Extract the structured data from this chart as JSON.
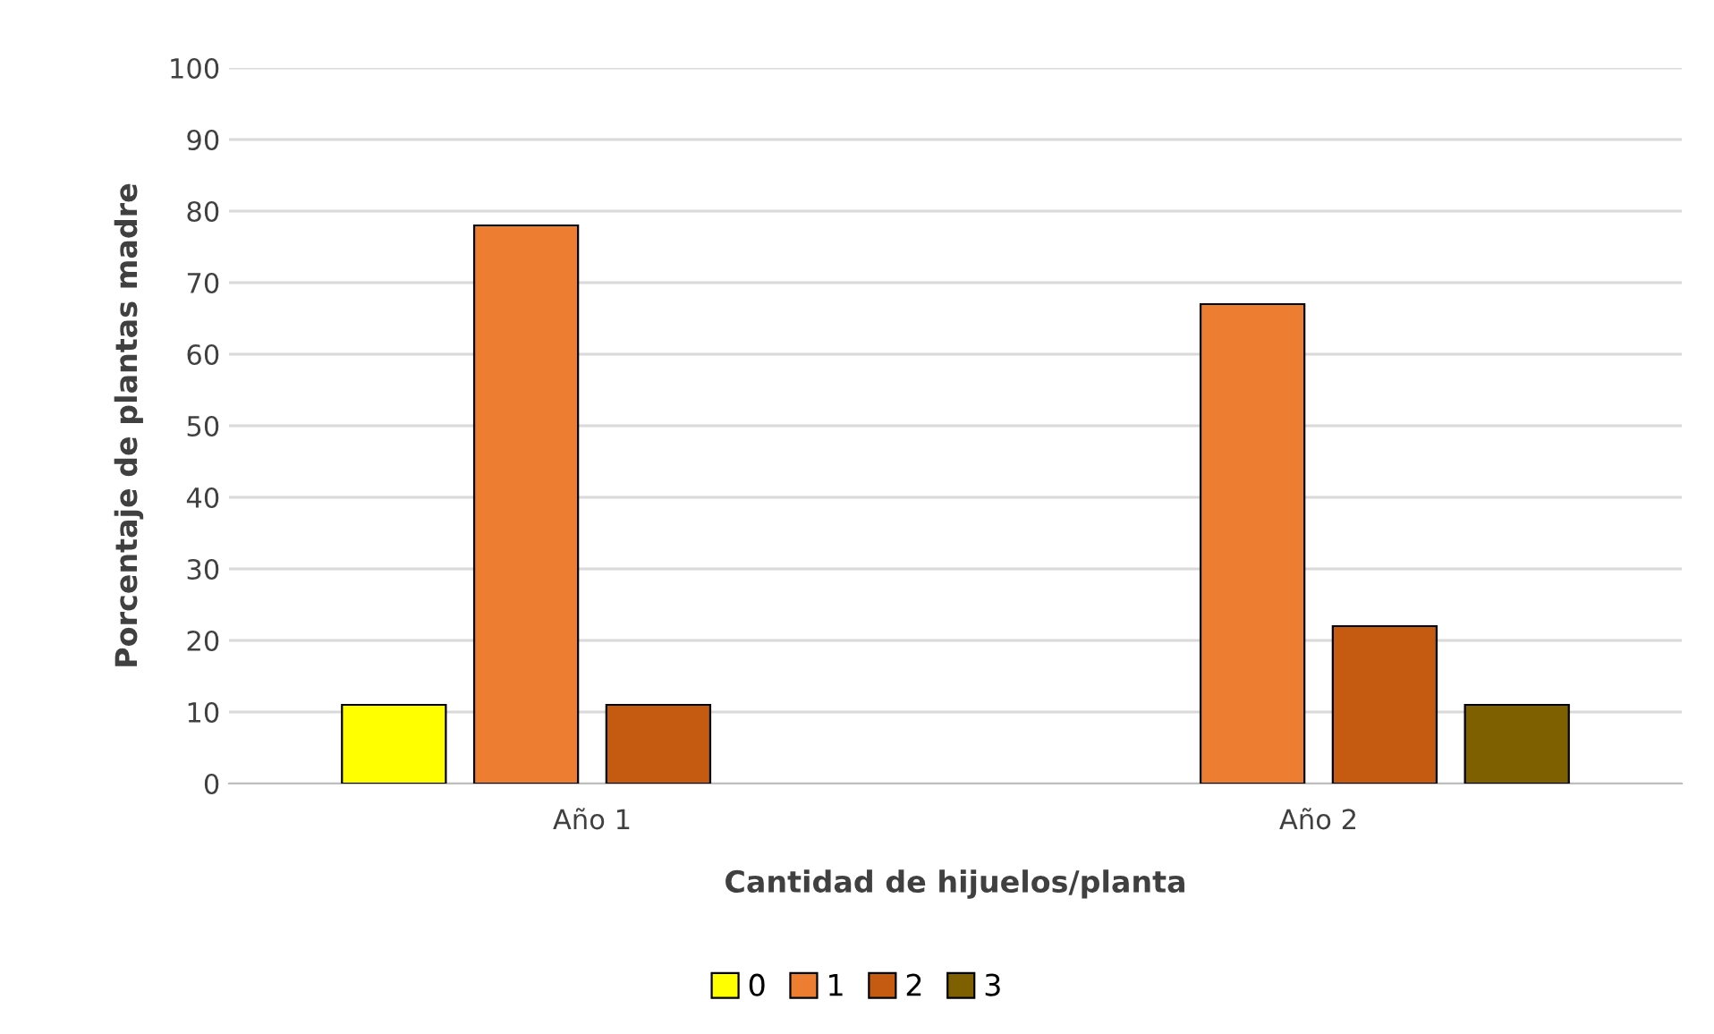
{
  "chart_data": {
    "type": "bar",
    "xlabel": "Cantidad de hijuelos/planta",
    "ylabel": "Porcentaje de plantas madre",
    "categories": [
      "Año 1",
      "Año 2"
    ],
    "series": [
      {
        "name": "0",
        "color": "#ffff00",
        "values": [
          11,
          0
        ]
      },
      {
        "name": "1",
        "color": "#ed7d31",
        "values": [
          78,
          67
        ]
      },
      {
        "name": "2",
        "color": "#c55a11",
        "values": [
          11,
          22
        ]
      },
      {
        "name": "3",
        "color": "#7f6000",
        "values": [
          0,
          11
        ]
      }
    ],
    "ylim": [
      0,
      100
    ],
    "yticks": [
      0,
      10,
      20,
      30,
      40,
      50,
      60,
      70,
      80,
      90,
      100
    ],
    "grid": "y",
    "legend": "bottom"
  }
}
